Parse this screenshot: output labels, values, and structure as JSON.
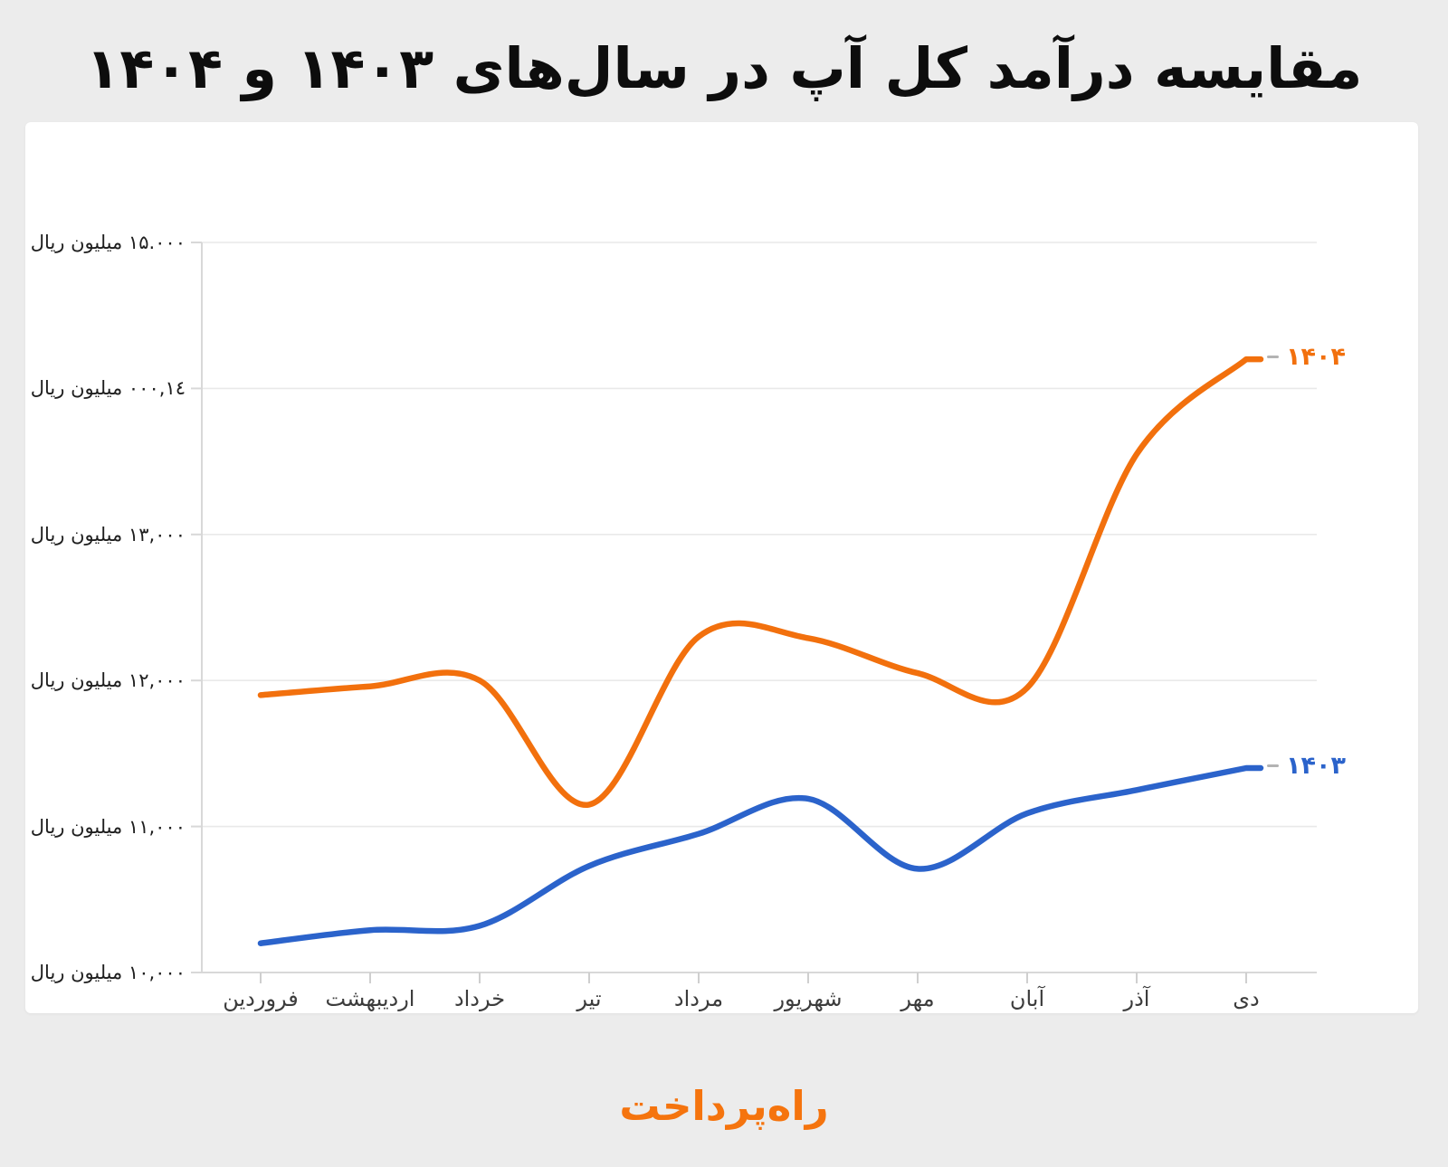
{
  "title": "مقایسه درآمد کل آپ در سال‌های ۱۴۰۳ و ۱۴۰۴",
  "footer": {
    "logo_text": "راه‌پرداخت"
  },
  "colors": {
    "background": "#ECECEC",
    "card": "#FFFFFF",
    "grid": "#E9E9E9",
    "axis": "#D8D8D8",
    "title_text": "#0D0D0D",
    "axis_label_text": "#3C3C3C",
    "series_1404": "#F2700D",
    "series_1403": "#2B63CB",
    "logo": "#F5740E"
  },
  "chart_data": {
    "type": "line",
    "title": "مقایسه درآمد کل آپ در سال‌های ۱۴۰۳ و ۱۴۰۴",
    "categories": [
      "فروردین",
      "اردیبهشت",
      "خرداد",
      "تیر",
      "مرداد",
      "شهریور",
      "مهر",
      "آبان",
      "آذر",
      "دی"
    ],
    "y_ticks": [
      15000,
      14000,
      13000,
      12000,
      11000,
      10000
    ],
    "y_tick_labels": [
      "۱۵.۰۰۰ میلیون ریال",
      "۱٤,۰۰۰ میلیون ریال",
      "۱۳,۰۰۰ میلیون ریال",
      "۱۲,۰۰۰ میلیون ریال",
      "۱۱,۰۰۰ میلیون ریال",
      "۱۰,۰۰۰ میلیون ریال"
    ],
    "ylim": [
      10000,
      15000
    ],
    "grid": true,
    "legend_position": "line-end",
    "series": [
      {
        "name": "۱۴۰۴",
        "color": "#F2700D",
        "values": [
          11900,
          11960,
          12000,
          11150,
          12300,
          12290,
          12050,
          11950,
          13550,
          14200
        ]
      },
      {
        "name": "۱۴۰۳",
        "color": "#2B63CB",
        "values": [
          10200,
          10290,
          10320,
          10730,
          10950,
          11190,
          10710,
          11090,
          11250,
          11400
        ]
      }
    ]
  }
}
